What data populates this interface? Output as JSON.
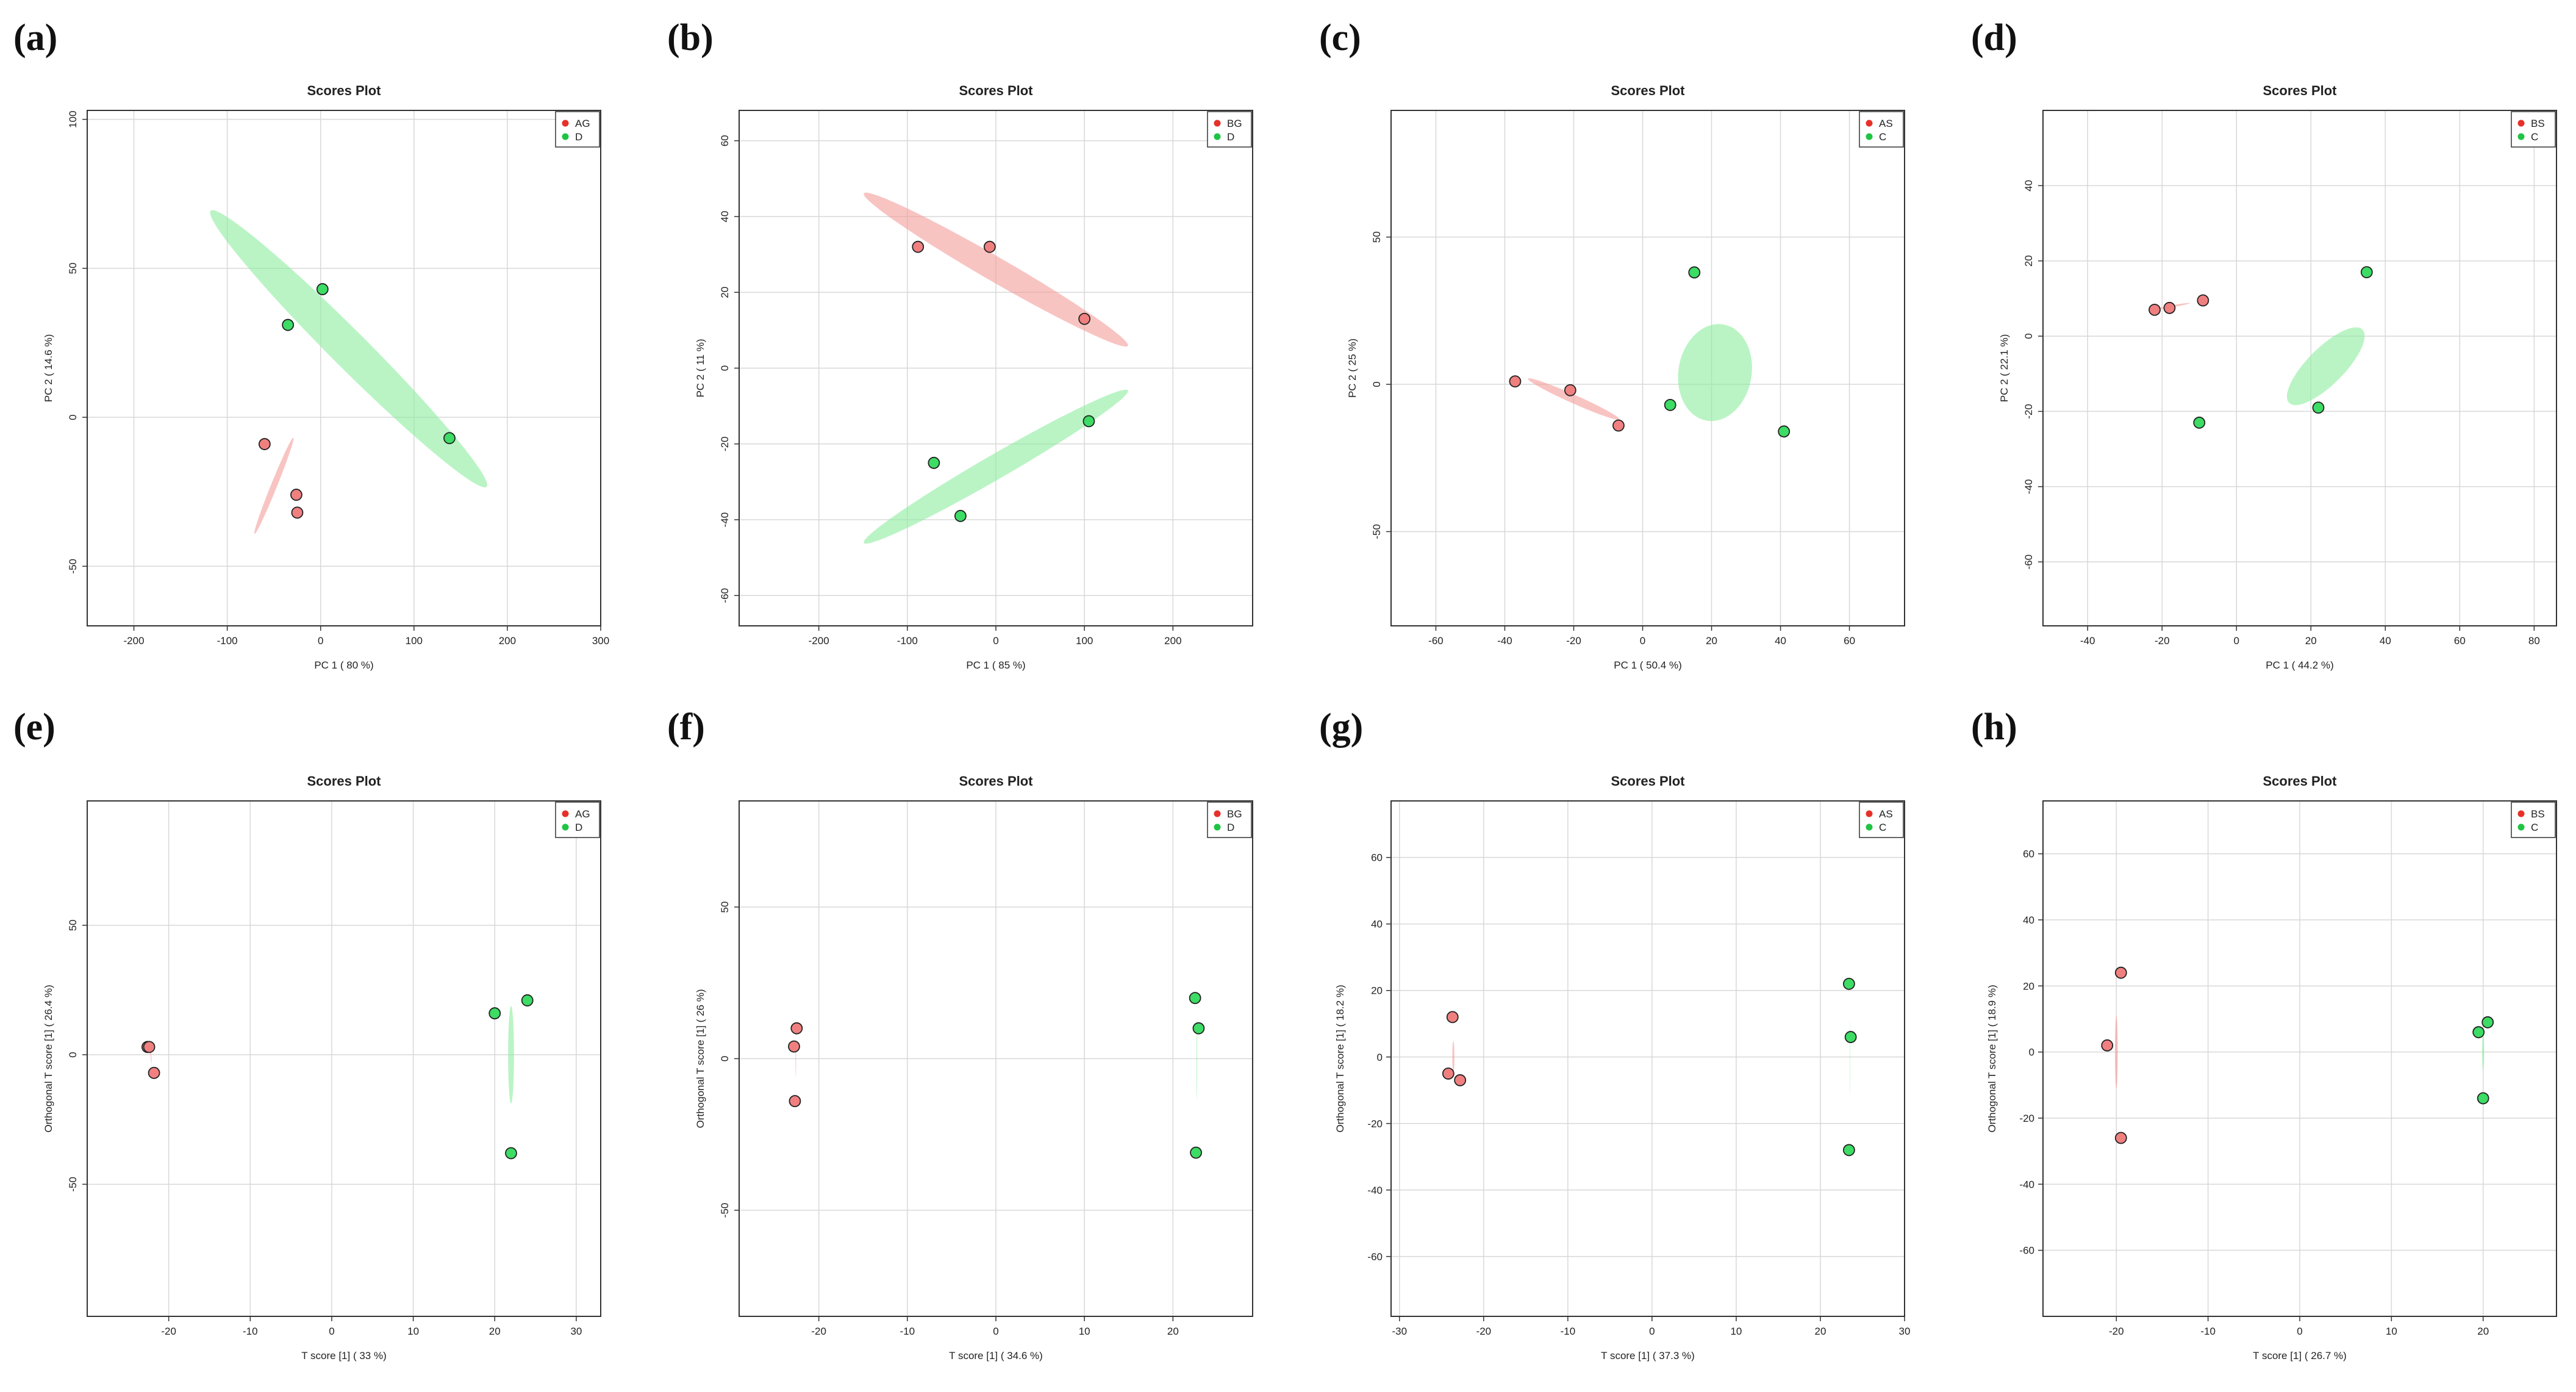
{
  "figure": {
    "colors": {
      "red": "#f08080",
      "green": "#3ddc64",
      "red_fill": "#f4a09c",
      "green_fill": "#90eea2"
    }
  },
  "chart_data": [
    {
      "panel": "(a)",
      "type": "scatter",
      "title": "Scores Plot",
      "xlabel": "PC 1 ( 80 %)",
      "ylabel": "PC 2 ( 14.6 %)",
      "xlim": [
        -250,
        300
      ],
      "ylim": [
        -70,
        103
      ],
      "xticks": [
        -200,
        -100,
        0,
        100,
        200,
        300
      ],
      "yticks": [
        -50,
        0,
        50,
        100
      ],
      "ytick_labels": [
        "-50",
        "0",
        "50",
        "100"
      ],
      "rotate_yticks": true,
      "grid": true,
      "legend_position": "top-right",
      "series": [
        {
          "name": "AG",
          "color": "red",
          "points": [
            [
              -60,
              -9
            ],
            [
              -26,
              -26
            ],
            [
              -25,
              -32
            ]
          ],
          "ellipse": {
            "cx": -50,
            "cy": -23,
            "rx": 85,
            "ry": 5,
            "angle": 68
          }
        },
        {
          "name": "D",
          "color": "green",
          "points": [
            [
              -35,
              31
            ],
            [
              2,
              43
            ],
            [
              138,
              -7
            ]
          ],
          "ellipse": {
            "cx": 30,
            "cy": 23,
            "rx": 320,
            "ry": 30,
            "angle": -45
          }
        }
      ]
    },
    {
      "panel": "(b)",
      "type": "scatter",
      "title": "Scores Plot",
      "xlabel": "PC 1 ( 85 %)",
      "ylabel": "PC 2 ( 11 %)",
      "xlim": [
        -290,
        290
      ],
      "ylim": [
        -68,
        68
      ],
      "xticks": [
        -200,
        -100,
        0,
        100,
        200
      ],
      "yticks": [
        -60,
        -40,
        -20,
        0,
        20,
        40,
        60
      ],
      "ytick_labels": [
        "-60",
        "-40",
        "-20",
        "0",
        "20",
        "40",
        "60"
      ],
      "rotate_yticks": true,
      "grid": true,
      "legend_position": "top-right",
      "series": [
        {
          "name": "BG",
          "color": "red",
          "points": [
            [
              -88,
              32
            ],
            [
              -7,
              32
            ],
            [
              100,
              13
            ]
          ],
          "ellipse": {
            "cx": 0,
            "cy": 26,
            "rx": 250,
            "ry": 20,
            "angle": -30
          }
        },
        {
          "name": "D",
          "color": "green",
          "points": [
            [
              -70,
              -25
            ],
            [
              -40,
              -39
            ],
            [
              105,
              -14
            ]
          ],
          "ellipse": {
            "cx": 0,
            "cy": -26,
            "rx": 250,
            "ry": 20,
            "angle": 30
          }
        }
      ]
    },
    {
      "panel": "(c)",
      "type": "scatter",
      "title": "Scores Plot",
      "xlabel": "PC 1 ( 50.4 %)",
      "ylabel": "PC 2 ( 25 %)",
      "xlim": [
        -73,
        76
      ],
      "ylim": [
        -82,
        93
      ],
      "xticks": [
        -60,
        -40,
        -20,
        0,
        20,
        40,
        60
      ],
      "yticks": [
        -50,
        0,
        50
      ],
      "ytick_labels": [
        "-50",
        "0",
        "50"
      ],
      "rotate_yticks": true,
      "grid": true,
      "legend_position": "top-right",
      "series": [
        {
          "name": "AS",
          "color": "red",
          "points": [
            [
              -37,
              1
            ],
            [
              -21,
              -2
            ],
            [
              -7,
              -14
            ]
          ],
          "ellipse": {
            "cx": -20,
            "cy": -5,
            "rx": 82,
            "ry": 7,
            "angle": -24
          }
        },
        {
          "name": "C",
          "color": "green",
          "points": [
            [
              15,
              38
            ],
            [
              8,
              -7
            ],
            [
              41,
              -16
            ]
          ],
          "ellipse": {
            "cx": 21,
            "cy": 4,
            "rx": 60,
            "ry": 80,
            "angle": -10
          }
        }
      ]
    },
    {
      "panel": "(d)",
      "type": "scatter",
      "title": "Scores Plot",
      "xlabel": "PC 1 ( 44.2 %)",
      "ylabel": "PC 2 ( 22.1 %)",
      "xlim": [
        -52,
        86
      ],
      "ylim": [
        -77,
        60
      ],
      "xticks": [
        -40,
        -20,
        0,
        20,
        40,
        60,
        80
      ],
      "yticks": [
        -60,
        -40,
        -20,
        0,
        20,
        40
      ],
      "ytick_labels": [
        "-60",
        "-40",
        "-20",
        "0",
        "20",
        "40"
      ],
      "rotate_yticks": true,
      "grid": true,
      "legend_position": "top-right",
      "series": [
        {
          "name": "BS",
          "color": "red",
          "points": [
            [
              -22,
              7
            ],
            [
              -18,
              7.5
            ],
            [
              -9,
              9.5
            ]
          ],
          "ellipse": {
            "cx": -17,
            "cy": 8,
            "rx": 28,
            "ry": 1.6,
            "angle": 10
          }
        },
        {
          "name": "C",
          "color": "green",
          "points": [
            [
              35,
              17
            ],
            [
              22,
              -19
            ],
            [
              -10,
              -23
            ]
          ],
          "ellipse": {
            "cx": 24,
            "cy": -8,
            "rx": 85,
            "ry": 30,
            "angle": 45
          }
        }
      ]
    },
    {
      "panel": "(e)",
      "type": "scatter",
      "title": "Scores Plot",
      "xlabel": "T score [1] ( 33 %)",
      "ylabel": "Orthogonal T score [1] ( 26.4 %)",
      "xlim": [
        -30,
        33
      ],
      "ylim": [
        -101,
        98
      ],
      "xticks": [
        -20,
        -10,
        0,
        10,
        20,
        30
      ],
      "yticks": [
        -50,
        0,
        50
      ],
      "ytick_labels": [
        "-50",
        "0",
        "50"
      ],
      "rotate_yticks": true,
      "grid": true,
      "legend_position": "top-right",
      "series": [
        {
          "name": "AG",
          "color": "red",
          "points": [
            [
              -22.6,
              3
            ],
            [
              -22.4,
              3
            ],
            [
              -21.8,
              -7
            ]
          ],
          "ellipse": {
            "cx": -22.2,
            "cy": 0,
            "rx": 14,
            "ry": 0.7,
            "angle": 95
          }
        },
        {
          "name": "D",
          "color": "green",
          "points": [
            [
              20,
              16
            ],
            [
              24,
              21
            ],
            [
              22,
              -38
            ]
          ],
          "ellipse": {
            "cx": 22,
            "cy": 0,
            "rx": 80,
            "ry": 4.8,
            "angle": 90
          }
        }
      ]
    },
    {
      "panel": "(f)",
      "type": "scatter",
      "title": "Scores Plot",
      "xlabel": "T score [1] ( 34.6 %)",
      "ylabel": "Orthogonal T score [1] ( 26 %)",
      "xlim": [
        -29,
        29
      ],
      "ylim": [
        -85,
        85
      ],
      "xticks": [
        -20,
        -10,
        0,
        10,
        20
      ],
      "yticks": [
        -50,
        0,
        50
      ],
      "ytick_labels": [
        "-50",
        "0",
        "50"
      ],
      "rotate_yticks": true,
      "grid": true,
      "legend_position": "top-right",
      "series": [
        {
          "name": "BG",
          "color": "red",
          "points": [
            [
              -22.5,
              10
            ],
            [
              -22.8,
              4
            ],
            [
              -22.7,
              -14
            ]
          ],
          "ellipse": {
            "cx": -22.6,
            "cy": 0,
            "rx": 30,
            "ry": 0.5,
            "angle": 90
          }
        },
        {
          "name": "D",
          "color": "green",
          "points": [
            [
              22.5,
              20
            ],
            [
              22.9,
              10
            ],
            [
              22.6,
              -31
            ]
          ],
          "ellipse": {
            "cx": 22.7,
            "cy": 0,
            "rx": 67,
            "ry": 0.6,
            "angle": 90
          }
        }
      ]
    },
    {
      "panel": "(g)",
      "type": "scatter",
      "title": "Scores Plot",
      "xlabel": "T score [1] ( 37.3 %)",
      "ylabel": "Orthogonal T score [1] ( 18.2 %)",
      "xlim": [
        -31,
        30
      ],
      "ylim": [
        -78,
        77
      ],
      "xticks": [
        -30,
        -20,
        -10,
        0,
        10,
        20,
        30
      ],
      "yticks": [
        -60,
        -40,
        -20,
        0,
        20,
        40,
        60
      ],
      "ytick_labels": [
        "-60",
        "-40",
        "-20",
        "0",
        "20",
        "40",
        "60"
      ],
      "rotate_yticks": false,
      "grid": true,
      "legend_position": "top-right",
      "series": [
        {
          "name": "AS",
          "color": "red",
          "points": [
            [
              -23.7,
              12
            ],
            [
              -24.2,
              -5
            ],
            [
              -22.8,
              -7
            ]
          ],
          "ellipse": {
            "cx": -23.6,
            "cy": 0,
            "rx": 26,
            "ry": 1.7,
            "angle": 90
          }
        },
        {
          "name": "C",
          "color": "green",
          "points": [
            [
              23.4,
              22
            ],
            [
              23.6,
              6
            ],
            [
              23.4,
              -28
            ]
          ],
          "ellipse": {
            "cx": 23.5,
            "cy": 0,
            "rx": 61,
            "ry": 0.35,
            "angle": 90
          }
        }
      ]
    },
    {
      "panel": "(h)",
      "type": "scatter",
      "title": "Scores Plot",
      "xlabel": "T score [1] ( 26.7 %)",
      "ylabel": "Orthogonal T score [1] ( 18.9 %)",
      "xlim": [
        -28,
        28
      ],
      "ylim": [
        -80,
        76
      ],
      "xticks": [
        -20,
        -10,
        0,
        10,
        20
      ],
      "yticks": [
        -60,
        -40,
        -20,
        0,
        20,
        40,
        60
      ],
      "ytick_labels": [
        "-60",
        "-40",
        "-20",
        "0",
        "20",
        "40",
        "60"
      ],
      "rotate_yticks": false,
      "grid": true,
      "legend_position": "top-right",
      "series": [
        {
          "name": "BS",
          "color": "red",
          "points": [
            [
              -21,
              2
            ],
            [
              -19.5,
              24
            ],
            [
              -19.5,
              -26
            ]
          ],
          "ellipse": {
            "cx": -20,
            "cy": 0,
            "rx": 60,
            "ry": 2.3,
            "angle": 90
          }
        },
        {
          "name": "C",
          "color": "green",
          "points": [
            [
              19.5,
              6
            ],
            [
              20.5,
              9
            ],
            [
              20,
              -14
            ]
          ],
          "ellipse": {
            "cx": 20,
            "cy": 0,
            "rx": 30,
            "ry": 1.6,
            "angle": 90
          }
        }
      ]
    }
  ]
}
